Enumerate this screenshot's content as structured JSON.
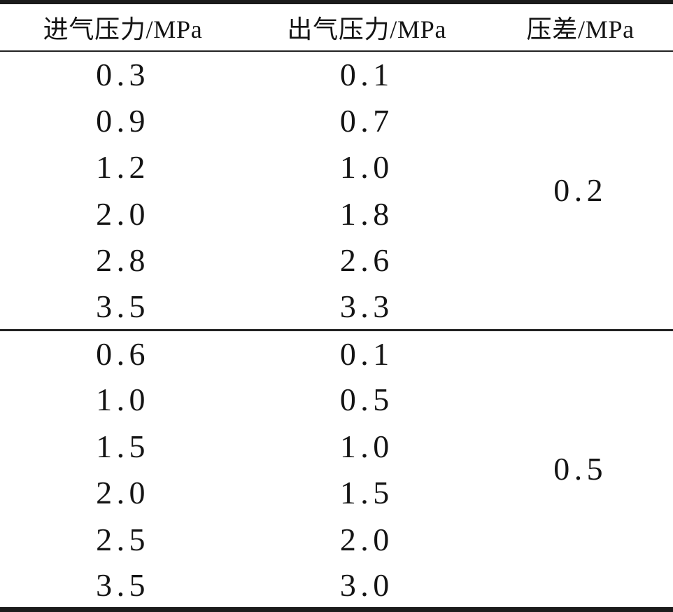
{
  "table": {
    "headers": [
      {
        "label": "进气压力/MPa"
      },
      {
        "label": "出气压力/MPa"
      },
      {
        "label": "压差/MPa"
      }
    ],
    "groups": [
      {
        "pressure_diff": "0.2",
        "rows": [
          [
            "0.3",
            "0.1"
          ],
          [
            "0.9",
            "0.7"
          ],
          [
            "1.2",
            "1.0"
          ],
          [
            "2.0",
            "1.8"
          ],
          [
            "2.8",
            "2.6"
          ],
          [
            "3.5",
            "3.3"
          ]
        ]
      },
      {
        "pressure_diff": "0.5",
        "rows": [
          [
            "0.6",
            "0.1"
          ],
          [
            "1.0",
            "0.5"
          ],
          [
            "1.5",
            "1.0"
          ],
          [
            "2.0",
            "1.5"
          ],
          [
            "2.5",
            "2.0"
          ],
          [
            "3.5",
            "3.0"
          ]
        ]
      }
    ]
  }
}
